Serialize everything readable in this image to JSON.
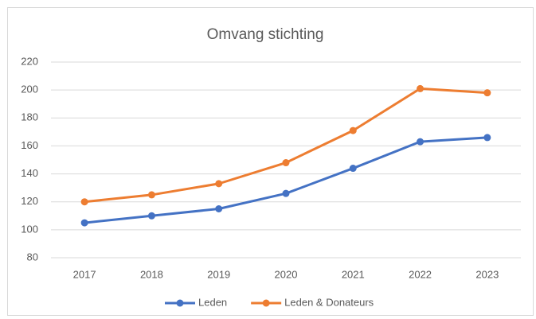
{
  "chart_data": {
    "type": "line",
    "title": "Omvang stichting",
    "categories": [
      "2017",
      "2018",
      "2019",
      "2020",
      "2021",
      "2022",
      "2023"
    ],
    "series": [
      {
        "name": "Leden",
        "color": "#4472c4",
        "values": [
          105,
          110,
          115,
          126,
          144,
          163,
          166
        ]
      },
      {
        "name": "Leden & Donateurs",
        "color": "#ed7d31",
        "values": [
          120,
          125,
          133,
          148,
          171,
          201,
          198
        ]
      }
    ],
    "ylim": [
      80,
      220
    ],
    "yticks": [
      80,
      100,
      120,
      140,
      160,
      180,
      200,
      220
    ],
    "grid": true,
    "legend": "bottom"
  }
}
